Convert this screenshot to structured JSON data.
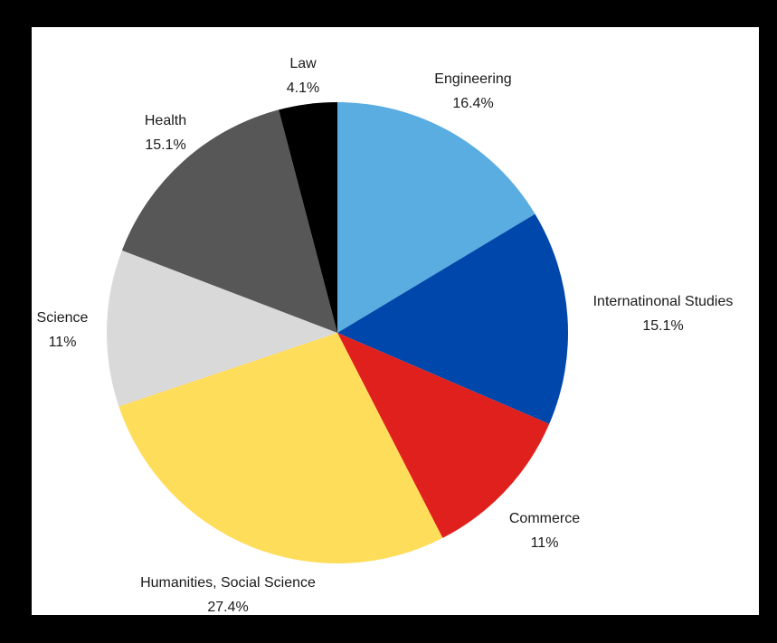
{
  "chart_data": {
    "type": "pie",
    "title": "",
    "slices": [
      {
        "label": "Engineering",
        "value": 16.4,
        "display": "16.4%",
        "color": "#5aade0"
      },
      {
        "label": "Internatinonal Studies",
        "value": 15.1,
        "display": "15.1%",
        "color": "#0047ab"
      },
      {
        "label": "Commerce",
        "value": 11,
        "display": "11%",
        "color": "#e0201c"
      },
      {
        "label": "Humanities, Social Science",
        "value": 27.4,
        "display": "27.4%",
        "color": "#fedd5a"
      },
      {
        "label": "Science",
        "value": 11,
        "display": "11%",
        "color": "#d9d9d9"
      },
      {
        "label": "Health",
        "value": 15.1,
        "display": "15.1%",
        "color": "#575757"
      },
      {
        "label": "Law",
        "value": 4.1,
        "display": "4.1%",
        "color": "#000000"
      }
    ],
    "start": "12 o'clock",
    "direction": "clockwise",
    "legend": "none"
  }
}
